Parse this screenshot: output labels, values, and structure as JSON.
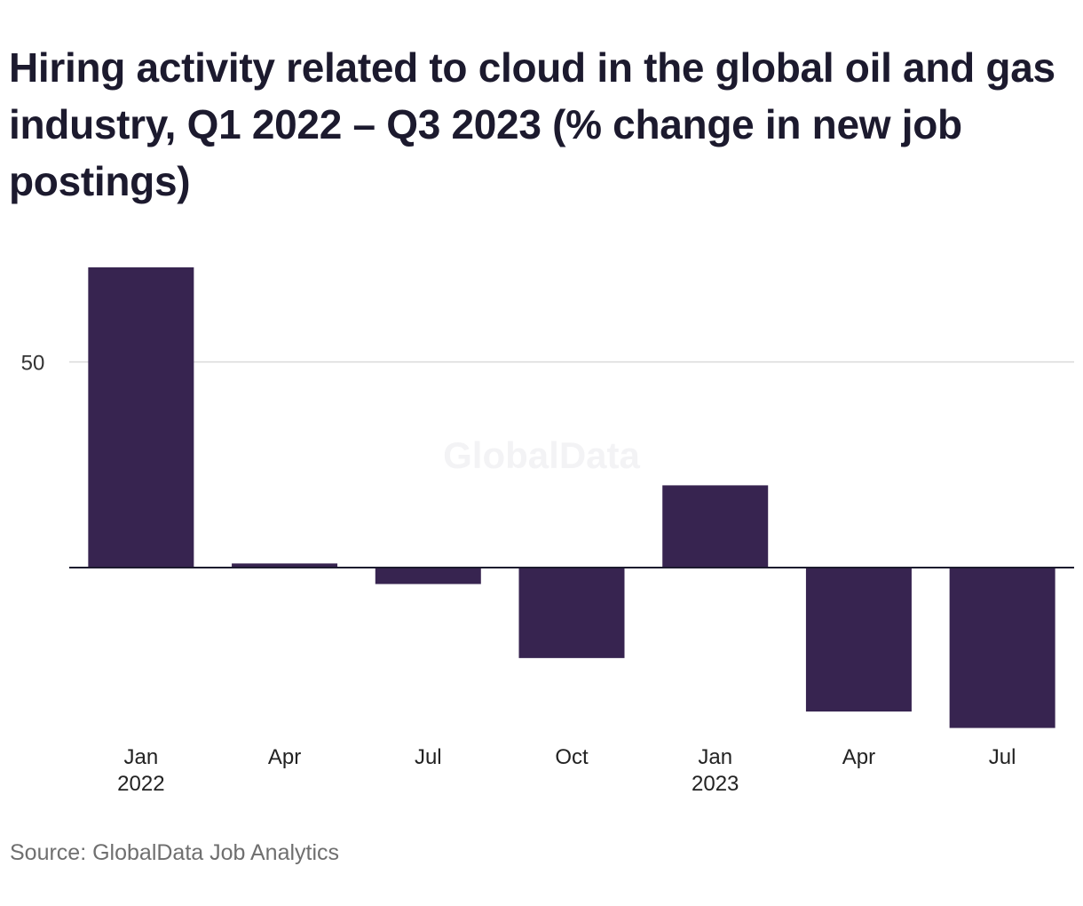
{
  "chart_data": {
    "type": "bar",
    "title": "Hiring activity related to cloud in the global oil and gas industry, Q1 2022 – Q3 2023 (% change in new job postings)",
    "xlabel": "",
    "ylabel": "",
    "categories": [
      "Jan 2022",
      "Apr 2022",
      "Jul 2022",
      "Oct 2022",
      "Jan 2023",
      "Apr 2023",
      "Jul 2023"
    ],
    "tick_labels": [
      {
        "line1": "Jan",
        "line2": "2022"
      },
      {
        "line1": "Apr",
        "line2": ""
      },
      {
        "line1": "Jul",
        "line2": ""
      },
      {
        "line1": "Oct",
        "line2": ""
      },
      {
        "line1": "Jan",
        "line2": "2023"
      },
      {
        "line1": "Apr",
        "line2": ""
      },
      {
        "line1": "Jul",
        "line2": ""
      }
    ],
    "values": [
      73,
      1,
      -4,
      -22,
      20,
      -35,
      -39
    ],
    "yticks": [
      50
    ],
    "ylim": [
      -45,
      80
    ],
    "grid": true,
    "bar_color": "#372450",
    "watermark": "GlobalData",
    "source": "Source: GlobalData Job Analytics"
  }
}
